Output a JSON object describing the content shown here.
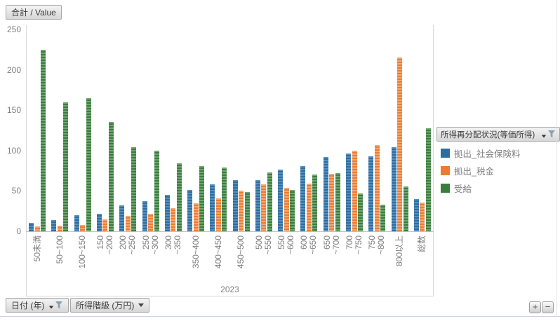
{
  "value_field": {
    "label": "合計 / Value"
  },
  "chart_data": {
    "type": "bar",
    "title": "",
    "xlabel": "",
    "ylabel": "",
    "year_label": "2023",
    "ylim": [
      0,
      250
    ],
    "yticks": [
      0,
      50,
      100,
      150,
      200,
      250
    ],
    "grid": false,
    "legend_position": "right",
    "categories": [
      "50未満",
      "50~100",
      "100~150",
      "150~200",
      "200~250",
      "250~300",
      "300~350",
      "350~400",
      "400~450",
      "450~500",
      "500~550",
      "550~600",
      "600~650",
      "650~700",
      "700~750",
      "750~800",
      "800以上",
      "総数"
    ],
    "category_display": [
      "50未満",
      "50~100",
      "100~150",
      "150\n~200",
      "200\n~250",
      "250\n~300",
      "300\n~350",
      "350~400",
      "400~450",
      "450~500",
      "500\n~550",
      "550\n~600",
      "600\n~650",
      "650\n~700",
      "700\n~750",
      "750\n~800",
      "800以上",
      "総数"
    ],
    "series": [
      {
        "name": "拠出_社会保険料",
        "color": "#2E6DA0",
        "color_light": "#5890BE",
        "values": [
          10,
          14,
          20,
          22,
          32,
          37,
          45,
          51,
          58,
          63,
          63,
          76,
          81,
          92,
          96,
          93,
          104,
          40
        ]
      },
      {
        "name": "拠出_税金",
        "color": "#EC7C31",
        "color_light": "#F4A878",
        "values": [
          6,
          7,
          8,
          15,
          19,
          22,
          29,
          35,
          41,
          50,
          58,
          54,
          59,
          71,
          100,
          107,
          215,
          36
        ]
      },
      {
        "name": "受給",
        "color": "#3A7D3E",
        "color_light": "#72A572",
        "values": [
          225,
          160,
          165,
          135,
          104,
          100,
          84,
          81,
          79,
          49,
          73,
          51,
          70,
          72,
          47,
          33,
          56,
          128
        ]
      }
    ]
  },
  "legend": {
    "header": "所得再分配状況(等価所得)"
  },
  "filters": {
    "date_label": "日付 (年)",
    "income_label": "所得階級 (万円)"
  },
  "zoom": {
    "plus": "+",
    "minus": "−"
  }
}
